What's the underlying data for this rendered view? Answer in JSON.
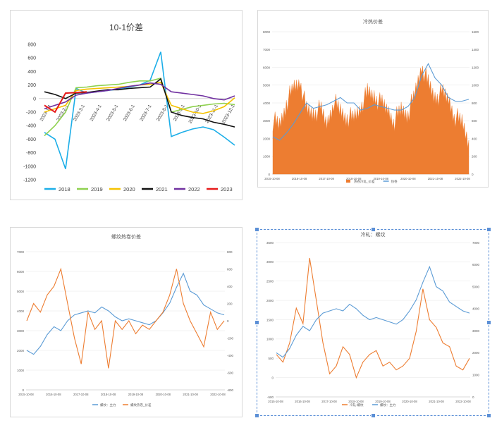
{
  "chart_data": [
    {
      "id": "p1",
      "type": "line",
      "title": "10-1价差",
      "ylim": [
        -1200,
        800
      ],
      "yticks": [
        800,
        600,
        400,
        200,
        0,
        -200,
        -400,
        -600,
        -800,
        -1000,
        -1200
      ],
      "x_tick_labels": [
        "2023-1-1",
        "2023-2-1",
        "2023-3-1",
        "2023-4-1",
        "2023-5-1",
        "2023-6-1",
        "2023-7-1",
        "2023-8-1",
        "2023-9-1",
        "2023-10-1",
        "2023-11-1",
        "2023-12-1"
      ],
      "legend_position": "bottom",
      "series": [
        {
          "name": "2018",
          "color": "#1caee8",
          "values": [
            -500,
            -600,
            -1040,
            150,
            80,
            100,
            120,
            140,
            170,
            200,
            270,
            690,
            -560,
            -500,
            -450,
            -420,
            -460,
            -570,
            -690
          ]
        },
        {
          "name": "2019",
          "color": "#8fd14f",
          "values": [
            -550,
            -400,
            -200,
            160,
            170,
            190,
            200,
            210,
            240,
            260,
            260,
            300,
            -200,
            -160,
            -120,
            -100,
            -80,
            -70,
            -90
          ]
        },
        {
          "name": "2020",
          "color": "#f5c200",
          "values": [
            -200,
            -150,
            -100,
            120,
            140,
            150,
            160,
            170,
            180,
            200,
            210,
            240,
            -100,
            -150,
            -200,
            -220,
            -180,
            -120,
            10
          ]
        },
        {
          "name": "2021",
          "color": "#111111",
          "values": [
            100,
            60,
            0,
            80,
            90,
            110,
            130,
            130,
            150,
            160,
            170,
            290,
            -200,
            -250,
            -280,
            -300,
            -350,
            -380,
            -420
          ]
        },
        {
          "name": "2022",
          "color": "#7030a0",
          "values": [
            -150,
            -100,
            -50,
            50,
            80,
            100,
            120,
            150,
            180,
            200,
            230,
            210,
            100,
            80,
            60,
            40,
            0,
            -20,
            40
          ]
        },
        {
          "name": "2023",
          "color": "#e61a1a",
          "values": [
            -100,
            -200,
            80,
            90,
            100
          ]
        }
      ]
    },
    {
      "id": "p2",
      "type": "area",
      "title": "冷热价差",
      "left_ylim": [
        0,
        8000
      ],
      "left_yticks": [
        8000,
        7000,
        6000,
        5000,
        4000,
        3000,
        2000,
        1000,
        0
      ],
      "right_ylim": [
        0,
        1600
      ],
      "right_yticks": [
        1600,
        1400,
        1200,
        1000,
        800,
        600,
        400,
        200,
        0
      ],
      "x_tick_labels": [
        "2015-10-08",
        "2016-10-08",
        "2017-10-08",
        "2018-10-08",
        "2019-10-08",
        "2020-10-08",
        "2021-10-08",
        "2022-10-08"
      ],
      "legend_position": "bottom",
      "series": [
        {
          "name": "热卷冷轧_价差",
          "color": "#ed7d31",
          "axis": "right",
          "kind": "area",
          "values": [
            600,
            540,
            800,
            950,
            1050,
            700,
            680,
            720,
            560,
            820,
            700,
            640,
            620,
            760,
            900,
            880,
            780,
            720,
            600,
            720,
            680,
            880,
            1220,
            1000,
            860,
            900,
            840,
            640,
            580,
            380
          ]
        },
        {
          "name": "热卷",
          "color": "#5b9bd5",
          "axis": "left",
          "kind": "line",
          "values": [
            2100,
            1900,
            2300,
            2800,
            3400,
            4000,
            3700,
            3800,
            3900,
            4100,
            4300,
            4000,
            4000,
            3600,
            3700,
            3900,
            3800,
            3700,
            3600,
            3600,
            3800,
            4300,
            5500,
            6200,
            5400,
            5000,
            4300,
            4100,
            4100,
            4200
          ]
        }
      ]
    },
    {
      "id": "p3",
      "type": "line",
      "title": "螺纹热卷价差",
      "left_ylim": [
        0,
        7000
      ],
      "left_yticks": [
        7000,
        6000,
        5000,
        4000,
        3000,
        2000,
        1000,
        0
      ],
      "right_ylim": [
        -800,
        800
      ],
      "right_yticks": [
        800,
        600,
        400,
        200,
        0,
        -200,
        -400,
        -600,
        -800
      ],
      "x_tick_labels": [
        "2015-10-08",
        "2016-10-08",
        "2017-10-08",
        "2018-10-08",
        "2019-10-08",
        "2020-10-08",
        "2021-10-08",
        "2022-10-08"
      ],
      "legend_position": "bottom",
      "series": [
        {
          "name": "螺纹：主力",
          "color": "#5b9bd5",
          "axis": "left",
          "values": [
            2000,
            1800,
            2200,
            2800,
            3200,
            3000,
            3500,
            3800,
            3900,
            4000,
            3900,
            4200,
            4000,
            3700,
            3500,
            3600,
            3500,
            3400,
            3300,
            3500,
            3900,
            4400,
            5200,
            5900,
            5000,
            4800,
            4300,
            4100,
            3900,
            3800
          ]
        },
        {
          "name": "螺纹热卷_价差",
          "color": "#ed7d31",
          "axis": "right",
          "values": [
            0,
            200,
            100,
            300,
            400,
            600,
            200,
            -200,
            -500,
            100,
            -100,
            0,
            -550,
            0,
            -100,
            0,
            -150,
            -50,
            -100,
            0,
            100,
            300,
            600,
            200,
            0,
            -150,
            -300,
            100,
            -100,
            0
          ]
        }
      ]
    },
    {
      "id": "p4",
      "type": "line",
      "title": "冷轧：螺纹",
      "left_ylim": [
        -500,
        3500
      ],
      "left_yticks": [
        3500,
        3000,
        2500,
        2000,
        1500,
        1000,
        500,
        0,
        -500
      ],
      "right_ylim": [
        0,
        7000
      ],
      "right_yticks": [
        7000,
        6000,
        5000,
        4000,
        3000,
        2000,
        1000,
        0
      ],
      "x_tick_labels": [
        "2015-10-08",
        "2016-10-08",
        "2017-10-08",
        "2018-10-08",
        "2019-10-08",
        "2020-10-08",
        "2021-10-08",
        "2022-10-08"
      ],
      "legend_position": "bottom",
      "series": [
        {
          "name": "冷轧-螺纹",
          "color": "#ed7d31",
          "axis": "left",
          "values": [
            600,
            400,
            900,
            1800,
            1400,
            3100,
            2000,
            900,
            100,
            300,
            800,
            600,
            0,
            400,
            600,
            700,
            300,
            400,
            200,
            300,
            500,
            1200,
            2300,
            1500,
            1300,
            900,
            800,
            300,
            200,
            500
          ]
        },
        {
          "name": "螺纹：主力",
          "color": "#5b9bd5",
          "axis": "right",
          "values": [
            2000,
            1800,
            2200,
            2800,
            3200,
            3000,
            3500,
            3800,
            3900,
            4000,
            3900,
            4200,
            4000,
            3700,
            3500,
            3600,
            3500,
            3400,
            3300,
            3500,
            3900,
            4400,
            5200,
            5900,
            5000,
            4800,
            4300,
            4100,
            3900,
            3800
          ]
        }
      ]
    }
  ]
}
